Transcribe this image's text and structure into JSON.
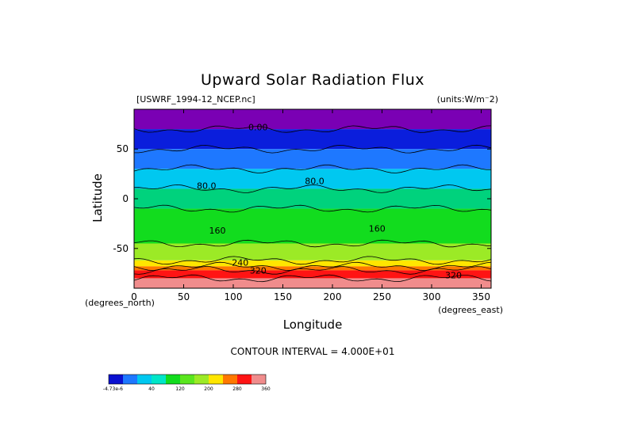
{
  "chart_data": {
    "type": "heatmap",
    "title": "Upward Solar Radiation Flux",
    "file_label": "[USWRF_1994-12_NCEP.nc]",
    "units_label": "(units:W/m⁻2)",
    "xlabel": "Longitude",
    "ylabel": "Latitude",
    "x_unit_label": "(degrees_east)",
    "y_unit_label": "(degrees_north)",
    "xlim": [
      0,
      360
    ],
    "ylim": [
      -90,
      90
    ],
    "x_ticks": [
      0,
      50,
      100,
      150,
      200,
      250,
      300,
      350
    ],
    "y_ticks": [
      50,
      0,
      -50
    ],
    "contour_interval_text": "CONTOUR INTERVAL = 4.000E+01",
    "contour_levels": [
      0,
      40,
      80,
      120,
      160,
      200,
      240,
      280,
      320,
      360
    ],
    "contour_labels": [
      {
        "text": "0.00",
        "lon": 125,
        "lat": 72
      },
      {
        "text": "80.0",
        "lon": 73,
        "lat": 13
      },
      {
        "text": "80.0",
        "lon": 182,
        "lat": 18
      },
      {
        "text": "160",
        "lon": 84,
        "lat": -32
      },
      {
        "text": "160",
        "lon": 245,
        "lat": -30
      },
      {
        "text": "240",
        "lon": 107,
        "lat": -64
      },
      {
        "text": "320",
        "lon": 125,
        "lat": -72
      },
      {
        "text": "320",
        "lon": 322,
        "lat": -77
      }
    ],
    "bands": [
      {
        "lat_top": 90,
        "lat_bottom": 70,
        "value_range": "<0",
        "color": "#7a00b4"
      },
      {
        "lat_top": 70,
        "lat_bottom": 50,
        "value_range": "0-40",
        "color": "#0a1edc"
      },
      {
        "lat_top": 50,
        "lat_bottom": 30,
        "value_range": "40-80",
        "color": "#1e78ff"
      },
      {
        "lat_top": 30,
        "lat_bottom": 10,
        "value_range": "80-120",
        "color": "#00c8f0"
      },
      {
        "lat_top": 10,
        "lat_bottom": -10,
        "value_range": "120-160",
        "color": "#00d27d"
      },
      {
        "lat_top": -10,
        "lat_bottom": -45,
        "value_range": "160-200",
        "color": "#12dc1e"
      },
      {
        "lat_top": -45,
        "lat_bottom": -62,
        "value_range": "200-240",
        "color": "#9cea26"
      },
      {
        "lat_top": -62,
        "lat_bottom": -68,
        "value_range": "240-280",
        "color": "#ffe600"
      },
      {
        "lat_top": -68,
        "lat_bottom": -72,
        "value_range": "280-320",
        "color": "#ff7800"
      },
      {
        "lat_top": -72,
        "lat_bottom": -80,
        "value_range": "320-360",
        "color": "#ff1414"
      },
      {
        "lat_top": -80,
        "lat_bottom": -90,
        "value_range": ">360",
        "color": "#f08c8c"
      }
    ],
    "colorbar": {
      "colors": [
        "#0a10d0",
        "#1e78ff",
        "#00c8f0",
        "#00e6c8",
        "#12dc1e",
        "#5ae61e",
        "#9cea26",
        "#ffe600",
        "#ff7800",
        "#ff1414",
        "#f08c8c"
      ],
      "labels": [
        "-4.73e-6",
        "40",
        "120",
        "200",
        "280",
        "360"
      ]
    }
  }
}
